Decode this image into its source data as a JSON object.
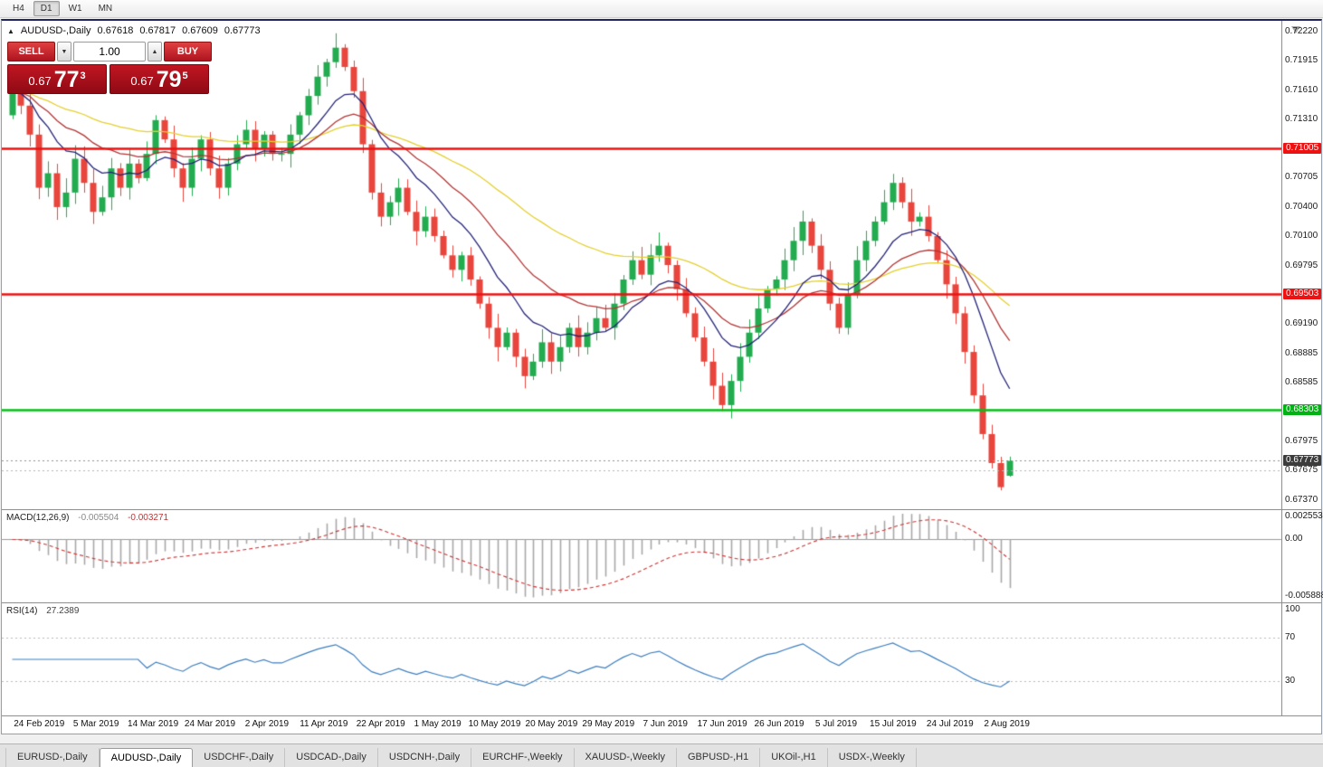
{
  "window": {
    "toolbar": {
      "timeframes": [
        "H4",
        "D1",
        "W1",
        "MN"
      ],
      "active": "D1"
    },
    "tabs": [
      "EURUSD-,Daily",
      "AUDUSD-,Daily",
      "USDCHF-,Daily",
      "USDCAD-,Daily",
      "USDCNH-,Daily",
      "EURCHF-,Weekly",
      "XAUUSD-,Weekly",
      "GBPUSD-,H1",
      "UKOil-,H1",
      "USDX-,Weekly"
    ],
    "active_tab": "AUDUSD-,Daily"
  },
  "info_line": {
    "collapse_icon": "▲",
    "symbol": "AUDUSD-,Daily",
    "open": "0.67618",
    "high": "0.67817",
    "low": "0.67609",
    "close": "0.67773"
  },
  "trade_panel": {
    "sell_label": "SELL",
    "buy_label": "BUY",
    "volume": "1.00",
    "spin_up_icon": "▲",
    "spin_down_icon": "▼",
    "sell_price": {
      "prefix": "0.67",
      "big": "77",
      "sup": "3"
    },
    "buy_price": {
      "prefix": "0.67",
      "big": "79",
      "sup": "5"
    }
  },
  "chart_data": {
    "type": "candlestick",
    "symbol": "AUDUSD",
    "timeframe": "Daily",
    "x_labels": [
      "24 Feb 2019",
      "5 Mar 2019",
      "14 Mar 2019",
      "24 Mar 2019",
      "2 Apr 2019",
      "11 Apr 2019",
      "22 Apr 2019",
      "1 May 2019",
      "10 May 2019",
      "20 May 2019",
      "29 May 2019",
      "7 Jun 2019",
      "17 Jun 2019",
      "26 Jun 2019",
      "5 Jul 2019",
      "15 Jul 2019",
      "24 Jul 2019",
      "2 Aug 2019"
    ],
    "price_axis": [
      {
        "v": "0.72220"
      },
      {
        "v": "0.71915"
      },
      {
        "v": "0.71610"
      },
      {
        "v": "0.71310"
      },
      {
        "v": "0.71005",
        "badge": "red"
      },
      {
        "v": "0.70705"
      },
      {
        "v": "0.70400"
      },
      {
        "v": "0.70100"
      },
      {
        "v": "0.69795"
      },
      {
        "v": "0.69503",
        "badge": "red"
      },
      {
        "v": "0.69190"
      },
      {
        "v": "0.68885"
      },
      {
        "v": "0.68585"
      },
      {
        "v": "0.68303",
        "badge": "green"
      },
      {
        "v": "0.67975"
      },
      {
        "v": "0.67773",
        "badge": "dark"
      },
      {
        "v": "0.67675"
      },
      {
        "v": "0.67370"
      }
    ],
    "price_range": {
      "max": 0.723,
      "min": 0.673
    },
    "levels": {
      "resistance": [
        0.71005,
        0.69503
      ],
      "support": [
        0.68303
      ],
      "bid": 0.67675,
      "last": 0.67773
    },
    "first_open": 0.7135,
    "closes": [
      0.716,
      0.7145,
      0.7115,
      0.706,
      0.7075,
      0.704,
      0.7055,
      0.709,
      0.7065,
      0.7035,
      0.705,
      0.708,
      0.706,
      0.7085,
      0.707,
      0.7095,
      0.713,
      0.711,
      0.708,
      0.706,
      0.709,
      0.711,
      0.708,
      0.706,
      0.7085,
      0.7105,
      0.712,
      0.71,
      0.7115,
      0.7095,
      0.7095,
      0.7115,
      0.7135,
      0.7155,
      0.7175,
      0.719,
      0.7205,
      0.7185,
      0.716,
      0.7105,
      0.7055,
      0.703,
      0.7045,
      0.706,
      0.7035,
      0.7015,
      0.703,
      0.701,
      0.699,
      0.6975,
      0.699,
      0.6965,
      0.694,
      0.6915,
      0.6895,
      0.691,
      0.6885,
      0.6865,
      0.688,
      0.69,
      0.688,
      0.6895,
      0.6915,
      0.6895,
      0.691,
      0.6925,
      0.6915,
      0.694,
      0.6965,
      0.6985,
      0.697,
      0.699,
      0.7,
      0.698,
      0.6955,
      0.693,
      0.6905,
      0.688,
      0.6855,
      0.6835,
      0.686,
      0.6885,
      0.691,
      0.6935,
      0.6955,
      0.6965,
      0.6985,
      0.7005,
      0.7025,
      0.7,
      0.6975,
      0.694,
      0.6915,
      0.695,
      0.6985,
      0.7005,
      0.7025,
      0.7045,
      0.7065,
      0.7045,
      0.7025,
      0.703,
      0.701,
      0.6985,
      0.696,
      0.693,
      0.689,
      0.6845,
      0.6805,
      0.6775,
      0.675,
      0.67773
    ],
    "last_bar": {
      "open": 0.67618,
      "high": 0.67817,
      "low": 0.67609,
      "close": 0.67773
    },
    "moving_averages": [
      {
        "period": 45,
        "color": "#e3cf2e",
        "name": "slow-ma-yellow"
      },
      {
        "period": 20,
        "color": "#b23535",
        "name": "medium-ma-red"
      },
      {
        "period": 10,
        "color": "#232378",
        "name": "fast-ma-navy"
      }
    ],
    "macd": {
      "label": "MACD(12,26,9)",
      "main_value": "-0.005504",
      "signal_value": "-0.003271",
      "axis": [
        "0.002553",
        "0.00",
        "-0.005888"
      ],
      "scale_max": 0.002553,
      "scale_min": -0.005888,
      "fast": 12,
      "slow": 26,
      "signal": 9
    },
    "rsi": {
      "label": "RSI(14)",
      "value": "27.2389",
      "axis": [
        "100",
        "70",
        "30"
      ],
      "period": 14,
      "levels": [
        70,
        30
      ]
    }
  },
  "colors": {
    "bull": "#22ab4f",
    "bear": "#e8453c",
    "level_red": "#ee1111",
    "level_green": "#00c214",
    "rsi_line": "#3c7ebf",
    "macd_hist": "#a8a8a8",
    "macd_signal": "#cc3333"
  }
}
